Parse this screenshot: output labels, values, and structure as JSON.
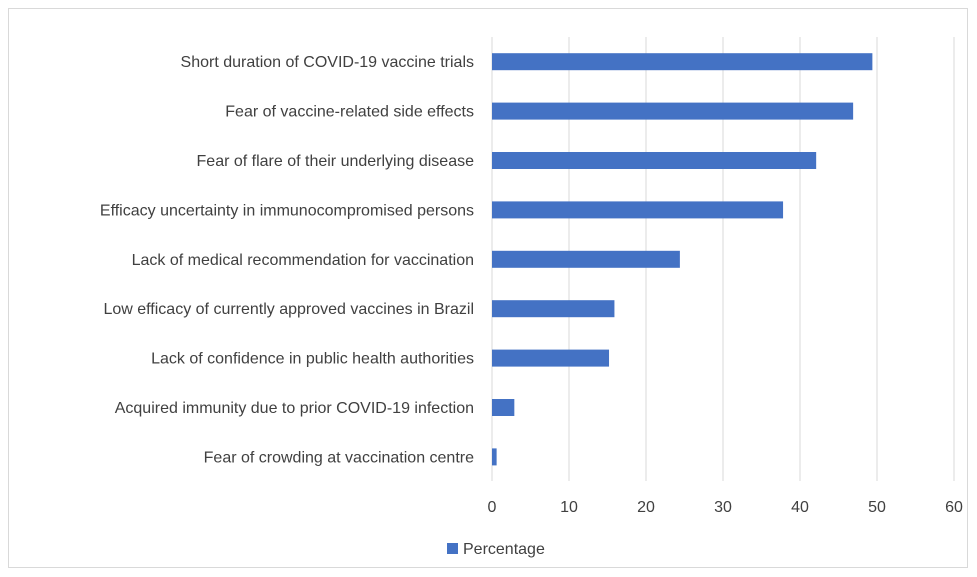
{
  "chart_data": {
    "type": "bar",
    "orientation": "horizontal",
    "categories": [
      "Short duration of COVID-19 vaccine trials",
      "Fear of vaccine-related side effects",
      "Fear of flare of their underlying disease",
      "Efficacy uncertainty in immunocompromised persons",
      "Lack of medical recommendation for vaccination",
      "Low efficacy of currently approved vaccines in Brazil",
      "Lack of confidence in public health authorities",
      "Acquired immunity due to prior COVID-19 infection",
      "Fear of crowding at vaccination centre"
    ],
    "series": [
      {
        "name": "Percentage",
        "color": "#4472c4",
        "values": [
          49.4,
          46.9,
          42.1,
          37.8,
          24.4,
          15.9,
          15.2,
          2.9,
          0.6
        ]
      }
    ],
    "xlim": [
      0,
      60
    ],
    "xticks": [
      0,
      10,
      20,
      30,
      40,
      50,
      60
    ],
    "grid": true,
    "gridColor": "#d9d9d9",
    "legend": "bottom-center"
  }
}
